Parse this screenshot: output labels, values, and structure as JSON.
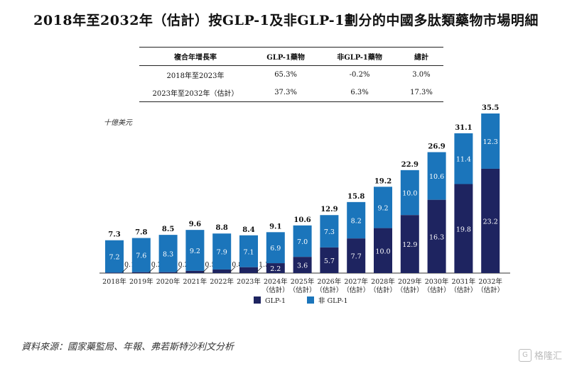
{
  "title": "2018年至2032年（估計）按GLP-1及非GLP-1劃分的中國多肽類藥物市場明細",
  "cagr_table": {
    "headers": [
      "複合年增長率",
      "GLP-1藥物",
      "非GLP-1藥物",
      "總計"
    ],
    "rows": [
      [
        "2018年至2023年",
        "65.3%",
        "-0.2%",
        "3.0%"
      ],
      [
        "2023年至2032年（估計）",
        "37.3%",
        "6.3%",
        "17.3%"
      ]
    ]
  },
  "chart_data": {
    "type": "bar",
    "stacked": true,
    "ylabel": "十億美元",
    "categories": [
      "2018年",
      "2019年",
      "2020年",
      "2021年",
      "2022年",
      "2023年",
      "2024年\n（估計）",
      "2025年\n（估計）",
      "2026年\n（估計）",
      "2027年\n（估計）",
      "2028年\n（估計）",
      "2029年\n（估計）",
      "2030年\n（估計）",
      "2031年\n（估計）",
      "2032年\n（估計）"
    ],
    "series": [
      {
        "name": "GLP-1",
        "color": "#1e2460",
        "values": [
          0.1,
          0.2,
          0.2,
          0.5,
          0.8,
          1.3,
          2.2,
          3.6,
          5.7,
          7.7,
          10.0,
          12.9,
          16.3,
          19.8,
          23.2
        ]
      },
      {
        "name": "非 GLP-1",
        "color": "#1b75bb",
        "values": [
          7.2,
          7.6,
          8.3,
          9.2,
          7.9,
          7.1,
          6.9,
          7.0,
          7.3,
          8.2,
          9.2,
          10.0,
          10.6,
          11.4,
          12.3
        ]
      }
    ],
    "totals": [
      7.3,
      7.8,
      8.5,
      9.6,
      8.8,
      8.4,
      9.1,
      10.6,
      12.9,
      15.8,
      19.2,
      22.9,
      26.9,
      31.1,
      35.5
    ],
    "ylim": [
      0,
      35.5
    ],
    "legend": "bottom-center"
  },
  "source": "資料來源：國家藥監局、年報、弗若斯特沙利文分析",
  "watermark": "格隆汇",
  "watermark_icon": "G"
}
